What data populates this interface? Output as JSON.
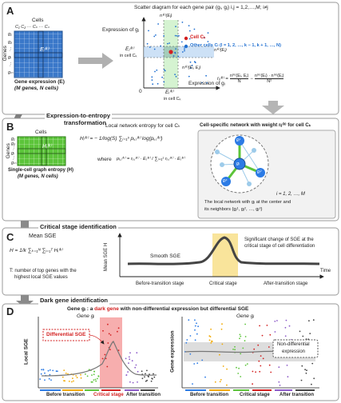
{
  "panelA": {
    "letter": "A",
    "cells_label": "Cells",
    "cell_cols": "C₁  C₂ ··· Cₖ ··· Cₙ",
    "genes_label": "Genes",
    "gene_rows": [
      "g₁",
      "g₂",
      "⋮",
      "gᵢ",
      "⋮",
      "gₘ"
    ],
    "matrix_entry": "Eᵢ⁽ᵏ⁾",
    "matrix_caption_1": "Gene expression (E)",
    "matrix_caption_2": "(M genes, N cells)",
    "scatter_title": "Scatter diagram for each gene pair (gᵢ, gⱼ) i,j = 1,2,…,M; i≠j",
    "y_axis": "Expression of gⱼ",
    "x_axis": "Expression of gᵢ",
    "origin": "0",
    "ej_label": "Eⱼ⁽ᵏ⁾",
    "ej_sub": "in cell Cₖ",
    "ei_label": "Eᵢ⁽ᵏ⁾",
    "ei_sub": "in cell Cₖ",
    "n_ei": "n⁽ᵏ⁾(Eᵢ)",
    "n_ej": "n⁽ᵏ⁾(Eⱼ)",
    "n_eiej": "n⁽ᵏ⁾(Eᵢ, Eⱼ)",
    "legend_cell": "Cell Cₖ",
    "legend_other": "Other cells Cₗ (l = 1, 2, …, k − 1, k + 1, …, N)",
    "rho_lhs": "rᵢⱼ⁽ᵏ⁾ =",
    "rho_t1_num": "n⁽ᵏ⁾(Eᵢ, Eⱼ)",
    "rho_t1_den": "N",
    "rho_minus": "−",
    "rho_t2_num": "n⁽ᵏ⁾(Eᵢ) · n⁽ᵏ⁾(Eⱼ)",
    "rho_t2_den": "N²"
  },
  "transition_ab": {
    "line1": "Expression-to-entropy",
    "line2": "transformation"
  },
  "panelB": {
    "letter": "B",
    "cells_label": "Cells",
    "genes_label": "Genes",
    "gene_rows": [
      "g₁",
      "g₂",
      "⋮",
      "gᵢ",
      "⋮",
      "gₘ"
    ],
    "matrix_entry": "Hᵢ⁽ᵏ⁾",
    "matrix_caption_1": "Single-cell graph entropy (H)",
    "matrix_caption_2": "(M genes, N cells)",
    "entropy_title": "Local network entropy for cell Cₖ",
    "h_formula": "Hᵢ⁽ᵏ⁾ = − 1/log(S) ∑ⱼ₌₁ˢ pᵢ,ⱼ⁽ᵏ⁾ log(pᵢ,ⱼ⁽ᵏ⁾)",
    "where": "where",
    "p_formula": "pᵢ,ⱼ⁽ᵏ⁾ = rᵢ,ⱼ⁽ᵏ⁾ · Eⱼ⁽ᵏ⁾ / ∑ⱼ₌₁ˢ rᵢ,ⱼ⁽ᵏ⁾ · Eⱼ⁽ᵏ⁾",
    "network_title": "Cell-specific network with weight rᵢⱼ⁽ᵏ⁾ for cell Cₖ",
    "node_center": "gᵢ",
    "node_n1": "gⱼ¹",
    "node_n2": "gⱼ²",
    "node_n3": "gⱼˢ",
    "index_range": "i = 1, 2, …, M",
    "caption_1": "The local network with gᵢ at the center and",
    "caption_2": "its neighbors {gⱼ¹, gⱼ², …, gⱼˢ}"
  },
  "transition_bc": "Critical stage identification",
  "panelC": {
    "letter": "C",
    "title": "Mean SGE",
    "formula": "H = 1/k ∑ₖ₌₁ᴺ ∑ᵢ₌₁ᵀ Hᵢ⁽ᵏ⁾",
    "note_1": "T: number of top genes with the",
    "note_2": "highest local SGE values",
    "y_axis": "Mean SGE H",
    "x_axis": "Time",
    "smooth_label": "Smooth SGE",
    "change_1": "Significant change of SGE at the",
    "change_2": "critical stage of cell differentiation",
    "stage_before": "Before-transition stage",
    "stage_critical": "Critical stage",
    "stage_after": "After-transition stage"
  },
  "transition_cd": "Dark gene identification",
  "panelD": {
    "letter": "D",
    "header_prefix": "Gene gᵢ : a ",
    "header_dark": "dark gene",
    "header_suffix": " with non-differential expression but differential SGE",
    "left_title": "Gene gᵢ",
    "left_y": "Local SGE",
    "left_callout": "Differential SGE",
    "right_title": "Gene gᵢ",
    "right_y": "Gene expression",
    "right_callout_1": "Non-differential",
    "right_callout_2": "expression",
    "x_before": "Before transition",
    "x_critical": "Critical stage",
    "x_after": "After transition"
  },
  "colors": {
    "matrix_blue": "#3a78c9",
    "matrix_green": "#5cc43a",
    "highlight_pink": "#f59a9a",
    "highlight_yellow": "#f8df8a",
    "dark_red": "#d32020",
    "arrow_grey": "#8a8a8a"
  }
}
